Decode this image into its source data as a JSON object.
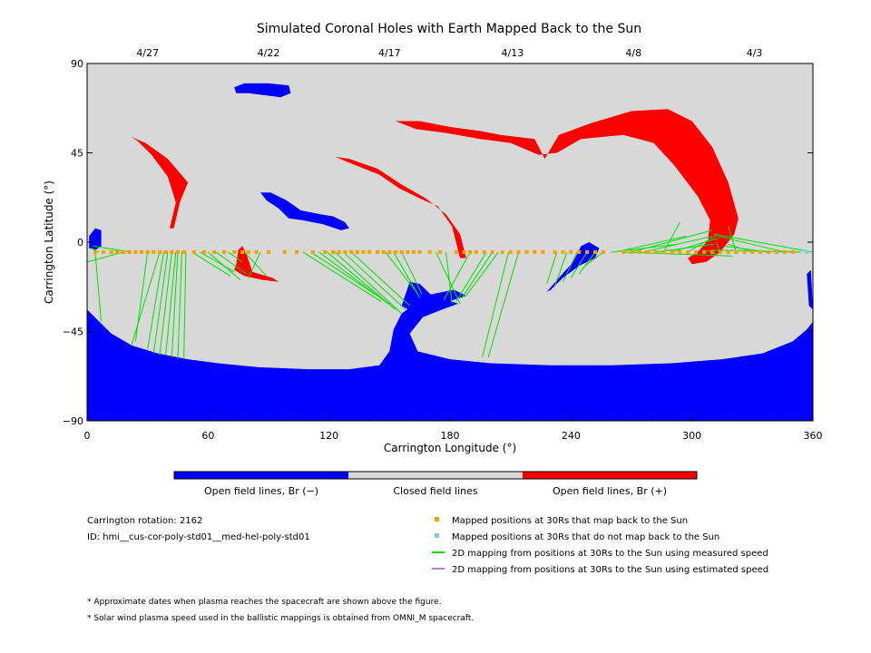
{
  "chart_data": {
    "type": "map",
    "title": "Simulated Coronal Holes with Earth Mapped Back to the Sun",
    "xlabel": "Carrington Longitude (°)",
    "ylabel": "Carrington Latitude (°)",
    "xlim": [
      0,
      360
    ],
    "ylim": [
      -90,
      90
    ],
    "x_ticks": [
      0,
      60,
      120,
      180,
      240,
      300,
      360
    ],
    "y_ticks": [
      -90,
      -45,
      0,
      45,
      90
    ],
    "top_axis_dates": [
      {
        "label": "4/27",
        "lon": 30
      },
      {
        "label": "4/22",
        "lon": 90
      },
      {
        "label": "4/17",
        "lon": 150
      },
      {
        "label": "4/13",
        "lon": 211
      },
      {
        "label": "4/8",
        "lon": 271
      },
      {
        "label": "4/3",
        "lon": 331
      }
    ],
    "colorbar": [
      {
        "label": "Open field lines, Br (−)",
        "color": "#0000ff"
      },
      {
        "label": "Closed field lines",
        "color": "#d8d8d8"
      },
      {
        "label": "Open field lines, Br (+)",
        "color": "#ff0000"
      }
    ],
    "regions": [
      {
        "name": "south-polar-hole",
        "polarity": "negative",
        "points": [
          [
            0,
            -34
          ],
          [
            6,
            -40
          ],
          [
            12,
            -46
          ],
          [
            22,
            -52
          ],
          [
            35,
            -56
          ],
          [
            50,
            -59
          ],
          [
            65,
            -61
          ],
          [
            85,
            -63
          ],
          [
            110,
            -64
          ],
          [
            130,
            -64
          ],
          [
            145,
            -62
          ],
          [
            150,
            -55
          ],
          [
            152,
            -44
          ],
          [
            156,
            -36
          ],
          [
            164,
            -30
          ],
          [
            172,
            -26
          ],
          [
            182,
            -24
          ],
          [
            188,
            -27
          ],
          [
            176,
            -31
          ],
          [
            168,
            -36
          ],
          [
            160,
            -46
          ],
          [
            164,
            -55
          ],
          [
            180,
            -59
          ],
          [
            200,
            -61
          ],
          [
            230,
            -62
          ],
          [
            260,
            -62
          ],
          [
            290,
            -61
          ],
          [
            315,
            -59
          ],
          [
            335,
            -56
          ],
          [
            350,
            -50
          ],
          [
            357,
            -44
          ],
          [
            360,
            -40
          ],
          [
            360,
            -90
          ],
          [
            0,
            -90
          ]
        ]
      },
      {
        "name": "south-hole-tongue",
        "polarity": "negative",
        "points": [
          [
            156,
            -32
          ],
          [
            160,
            -20
          ],
          [
            165,
            -21
          ],
          [
            170,
            -26
          ],
          [
            184,
            -31
          ],
          [
            176,
            -34
          ],
          [
            166,
            -38
          ]
        ]
      },
      {
        "name": "north-small-hole",
        "polarity": "negative",
        "points": [
          [
            73,
            78
          ],
          [
            78,
            80
          ],
          [
            90,
            80
          ],
          [
            100,
            79
          ],
          [
            101,
            75
          ],
          [
            96,
            73
          ],
          [
            88,
            74
          ],
          [
            80,
            75
          ],
          [
            74,
            75
          ]
        ]
      },
      {
        "name": "mid-north-hole",
        "polarity": "negative",
        "points": [
          [
            86,
            25
          ],
          [
            91,
            25
          ],
          [
            99,
            21
          ],
          [
            106,
            16
          ],
          [
            116,
            14
          ],
          [
            122,
            13
          ],
          [
            128,
            10
          ],
          [
            130,
            7
          ],
          [
            126,
            6
          ],
          [
            117,
            9
          ],
          [
            107,
            11
          ],
          [
            100,
            12
          ],
          [
            95,
            17
          ],
          [
            89,
            21
          ]
        ]
      },
      {
        "name": "equator-hole-west-edge",
        "polarity": "negative",
        "points": [
          [
            1,
            3
          ],
          [
            4,
            7
          ],
          [
            7,
            6
          ],
          [
            7,
            -2
          ],
          [
            4,
            -4
          ],
          [
            1,
            -3
          ]
        ]
      },
      {
        "name": "equator-hole-240",
        "polarity": "negative",
        "points": [
          [
            228,
            -25
          ],
          [
            234,
            -18
          ],
          [
            241,
            -10
          ],
          [
            245,
            -2
          ],
          [
            249,
            0
          ],
          [
            254,
            -3
          ],
          [
            252,
            -8
          ],
          [
            244,
            -12
          ],
          [
            236,
            -18
          ],
          [
            230,
            -24
          ]
        ]
      },
      {
        "name": "east-limb-hole",
        "polarity": "negative",
        "points": [
          [
            357,
            -16
          ],
          [
            359,
            -14
          ],
          [
            360,
            -34
          ],
          [
            358,
            -32
          ]
        ]
      },
      {
        "name": "pos-hole-northwest-streak",
        "polarity": "positive",
        "points": [
          [
            22,
            53
          ],
          [
            29,
            50
          ],
          [
            40,
            42
          ],
          [
            50,
            30
          ],
          [
            46,
            20
          ],
          [
            43,
            7
          ],
          [
            41,
            7
          ],
          [
            44,
            20
          ],
          [
            40,
            33
          ],
          [
            32,
            44
          ],
          [
            25,
            51
          ]
        ]
      },
      {
        "name": "pos-hole-mid-streak",
        "polarity": "positive",
        "points": [
          [
            123,
            43
          ],
          [
            130,
            40
          ],
          [
            145,
            34
          ],
          [
            155,
            27
          ],
          [
            165,
            22
          ],
          [
            174,
            18
          ],
          [
            181,
            8
          ],
          [
            185,
            -8
          ],
          [
            188,
            -8
          ],
          [
            185,
            4
          ],
          [
            178,
            14
          ],
          [
            168,
            22
          ],
          [
            156,
            29
          ],
          [
            144,
            37
          ],
          [
            130,
            42
          ]
        ]
      },
      {
        "name": "pos-hole-big-arch",
        "polarity": "positive",
        "points": [
          [
            153,
            61
          ],
          [
            165,
            61
          ],
          [
            180,
            58
          ],
          [
            195,
            56
          ],
          [
            205,
            54
          ],
          [
            222,
            52
          ],
          [
            227,
            42
          ],
          [
            234,
            54
          ],
          [
            250,
            60
          ],
          [
            270,
            66
          ],
          [
            288,
            67
          ],
          [
            300,
            61
          ],
          [
            310,
            48
          ],
          [
            318,
            30
          ],
          [
            323,
            12
          ],
          [
            321,
            4
          ],
          [
            314,
            -5
          ],
          [
            307,
            -10
          ],
          [
            300,
            -11
          ],
          [
            298,
            -8
          ],
          [
            303,
            -5
          ],
          [
            308,
            1
          ],
          [
            309,
            11
          ],
          [
            303,
            23
          ],
          [
            291,
            39
          ],
          [
            281,
            50
          ],
          [
            266,
            54
          ],
          [
            245,
            52
          ],
          [
            233,
            45
          ],
          [
            224,
            44
          ],
          [
            210,
            50
          ],
          [
            195,
            52
          ],
          [
            178,
            55
          ],
          [
            163,
            57
          ]
        ]
      },
      {
        "name": "pos-hole-75",
        "polarity": "positive",
        "points": [
          [
            74,
            -11
          ],
          [
            75,
            -4
          ],
          [
            77,
            -2
          ],
          [
            79,
            -6
          ],
          [
            82,
            -15
          ],
          [
            92,
            -18
          ],
          [
            95,
            -20
          ],
          [
            87,
            -19
          ],
          [
            78,
            -17
          ],
          [
            73,
            -14
          ]
        ]
      }
    ],
    "mapped_positions": {
      "lat": -5,
      "lons": [
        4,
        8,
        12,
        15,
        18,
        21,
        24,
        27,
        30,
        33,
        36,
        39,
        42,
        45,
        48,
        53,
        58,
        63,
        68,
        73,
        77,
        80,
        84,
        90,
        98,
        104,
        112,
        118,
        122,
        125,
        128,
        131,
        134,
        137,
        140,
        144,
        147,
        150,
        153,
        156,
        159,
        162,
        165,
        170,
        175,
        183,
        187,
        190,
        193,
        197,
        201,
        206,
        210,
        214,
        218,
        222,
        226,
        232,
        236,
        240,
        244,
        248,
        252,
        256,
        266,
        270,
        274,
        278,
        282,
        286,
        290,
        294,
        298,
        302,
        306,
        310,
        314,
        318,
        322,
        326,
        330,
        334,
        338,
        342,
        346,
        350
      ],
      "no_map_lons": [
        357
      ]
    },
    "mappings": [
      [
        4,
        -5,
        7,
        -40
      ],
      [
        6,
        -5,
        2,
        -3
      ],
      [
        18,
        -5,
        0,
        -10
      ],
      [
        22,
        -5,
        3,
        -2
      ],
      [
        30,
        -5,
        24,
        -50
      ],
      [
        36,
        -5,
        22,
        -52
      ],
      [
        38,
        -5,
        30,
        -54
      ],
      [
        40,
        -5,
        33,
        -56
      ],
      [
        42,
        -5,
        36,
        -57
      ],
      [
        44,
        -5,
        39,
        -57
      ],
      [
        45,
        -5,
        42,
        -58
      ],
      [
        47,
        -5,
        45,
        -59
      ],
      [
        49,
        -5,
        48,
        -59
      ],
      [
        52,
        -5,
        71,
        -17
      ],
      [
        56,
        -5,
        73,
        -15
      ],
      [
        60,
        -5,
        76,
        -19
      ],
      [
        64,
        -5,
        79,
        -16
      ],
      [
        70,
        -5,
        77,
        -10
      ],
      [
        78,
        -5,
        89,
        -17
      ],
      [
        86,
        -5,
        80,
        -18
      ],
      [
        107,
        -5,
        146,
        -30
      ],
      [
        111,
        -5,
        150,
        -31
      ],
      [
        115,
        -5,
        152,
        -33
      ],
      [
        119,
        -5,
        153,
        -34
      ],
      [
        123,
        -5,
        156,
        -36
      ],
      [
        127,
        -5,
        158,
        -34
      ],
      [
        131,
        -5,
        160,
        -32
      ],
      [
        148,
        -5,
        164,
        -26
      ],
      [
        152,
        -5,
        165,
        -28
      ],
      [
        156,
        -5,
        166,
        -26
      ],
      [
        173,
        -5,
        185,
        -31
      ],
      [
        178,
        -5,
        181,
        -31
      ],
      [
        190,
        -5,
        177,
        -29
      ],
      [
        198,
        -5,
        183,
        -30
      ],
      [
        201,
        -5,
        186,
        -28
      ],
      [
        204,
        -5,
        188,
        -27
      ],
      [
        209,
        -5,
        196,
        -58
      ],
      [
        214,
        -5,
        199,
        -58
      ],
      [
        233,
        -5,
        228,
        -21
      ],
      [
        238,
        -5,
        232,
        -22
      ],
      [
        243,
        -5,
        236,
        -20
      ],
      [
        248,
        -5,
        240,
        -18
      ],
      [
        252,
        -5,
        244,
        -16
      ],
      [
        256,
        -5,
        247,
        -12
      ],
      [
        260,
        -5,
        293,
        -1
      ],
      [
        262,
        -5,
        297,
        3
      ],
      [
        270,
        -5,
        310,
        6
      ],
      [
        276,
        -5,
        310,
        3
      ],
      [
        282,
        -5,
        311,
        -1
      ],
      [
        290,
        -5,
        313,
        2
      ],
      [
        298,
        -5,
        313,
        4
      ],
      [
        305,
        -5,
        311,
        -4
      ],
      [
        310,
        -5,
        312,
        -6
      ],
      [
        314,
        -5,
        312,
        0
      ],
      [
        322,
        -5,
        318,
        8
      ],
      [
        330,
        -5,
        318,
        -1
      ],
      [
        338,
        -5,
        316,
        -2
      ],
      [
        346,
        -5,
        313,
        3
      ],
      [
        354,
        -5,
        310,
        -4
      ],
      [
        360,
        -5,
        311,
        4
      ],
      [
        266,
        -5,
        320,
        -7
      ],
      [
        286,
        -5,
        294,
        10
      ]
    ]
  },
  "info": {
    "rotation": "Carrington rotation: 2162",
    "id": "ID: hmi__cus-cor-poly-std01__med-hel-poly-std01"
  },
  "legend": [
    {
      "label": "Mapped positions at 30Rs that map back to the Sun",
      "kind": "square",
      "color": "#f5a000"
    },
    {
      "label": "Mapped positions at 30Rs that do not map back to the Sun",
      "kind": "square",
      "color": "#88c4f0"
    },
    {
      "label": "2D mapping from positions at 30Rs to the Sun using measured speed",
      "kind": "line",
      "color": "#00e000"
    },
    {
      "label": "2D mapping from positions at 30Rs to the Sun using estimated speed",
      "kind": "line",
      "color": "#b080e0"
    }
  ],
  "footnotes": [
    "* Approximate dates when plasma reaches the spacecraft are shown above the figure.",
    "* Solar wind plasma speed used in the ballistic mappings is obtained from OMNI_M spacecraft."
  ],
  "colors": {
    "closed": "#d8d8d8",
    "negative": "#0000ff",
    "positive": "#ff0000",
    "mapped": "#f5a000",
    "unmapped": "#88c4f0",
    "measured": "#00e000"
  }
}
